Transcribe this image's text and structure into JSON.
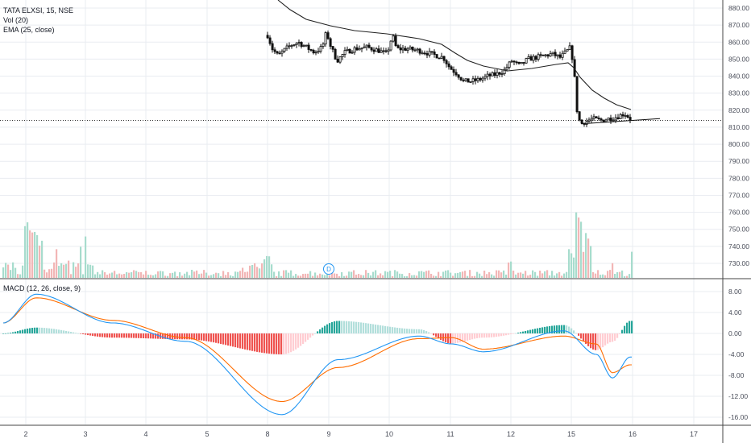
{
  "colors": {
    "grid": "#e9ecf1",
    "axis_text": "#4a4e5a",
    "candle": "#111111",
    "ema": "#222222",
    "vol_up": "#a7dccd",
    "vol_down": "#f2b6b6",
    "macd_line": "#2196f3",
    "signal_line": "#ff6d00",
    "hist_pos": "#26a69a",
    "hist_pos_light": "#b2dfdb",
    "hist_neg": "#ef5350",
    "hist_neg_light": "#ffcdd2",
    "dotted_line": "#333333",
    "dividend": "#2196f3"
  },
  "legend": {
    "symbol": "TATA ELXSI, 15, NSE",
    "vol": "Vol (20)",
    "ema": "EMA (25, close)",
    "macd": "MACD (12, 26, close, 9)"
  },
  "dividend_marker": "D",
  "chart_data": [
    {
      "type": "candlestick",
      "title": "TATA ELXSI, 15, NSE",
      "ylim": [
        722,
        886
      ],
      "price_axis_ticks": [
        "880.00",
        "870.00",
        "860.00",
        "850.00",
        "840.00",
        "830.00",
        "820.00",
        "810.00",
        "800.00",
        "790.00",
        "780.00",
        "770.00",
        "760.00",
        "750.00",
        "740.00",
        "730.00"
      ],
      "x_ticks": [
        "2",
        "3",
        "4",
        "5",
        "8",
        "9",
        "10",
        "11",
        "12",
        "15",
        "16",
        "17"
      ],
      "series_anchor_points": [
        {
          "day": "8",
          "close": 865
        },
        {
          "day": "8",
          "close": 853
        },
        {
          "day": "9",
          "close": 860
        },
        {
          "day": "10",
          "close": 856
        },
        {
          "day": "11",
          "close": 843
        },
        {
          "day": "11",
          "close": 836
        },
        {
          "day": "12",
          "close": 845
        },
        {
          "day": "12",
          "close": 848
        },
        {
          "day": "15",
          "close": 853
        },
        {
          "day": "15",
          "close": 822
        },
        {
          "day": "15",
          "close": 812
        },
        {
          "day": "16",
          "close": 814
        }
      ],
      "ema": {
        "name": "EMA (25, close)",
        "start": 884,
        "end": 820
      },
      "horizontal_line": 814,
      "trendline": {
        "from": {
          "day": "15",
          "value": 812
        },
        "to": {
          "day": "16",
          "value": 815.5
        }
      }
    },
    {
      "type": "bar",
      "title": "Vol (20)",
      "relative_volume_peaks": [
        {
          "day": "2",
          "value": 1.0
        },
        {
          "day": "2",
          "value": 0.8
        },
        {
          "day": "3",
          "value": 0.7
        },
        {
          "day": "8",
          "value": 0.4
        },
        {
          "day": "12",
          "value": 0.3
        },
        {
          "day": "15",
          "value": 1.1
        },
        {
          "day": "16",
          "value": 0.55
        }
      ]
    },
    {
      "type": "line",
      "title": "MACD (12, 26, close, 9)",
      "ylim": [
        -17.5,
        10
      ],
      "y_ticks": [
        "8.00",
        "4.00",
        "0.00",
        "-4.00",
        "-8.00",
        "-12.00",
        "-16.00"
      ],
      "series": [
        {
          "name": "MACD",
          "key_values": [
            2,
            7.5,
            2,
            -1.5,
            -15.5,
            -5,
            -0.5,
            -2,
            -3.5,
            0.5,
            -4,
            -8.5,
            -4.5
          ]
        },
        {
          "name": "Signal",
          "key_values": [
            2,
            6.8,
            2.5,
            -0.8,
            -13,
            -6.5,
            -1,
            -0.8,
            -3,
            -0.5,
            -2,
            -7.5,
            -6
          ]
        }
      ]
    }
  ]
}
